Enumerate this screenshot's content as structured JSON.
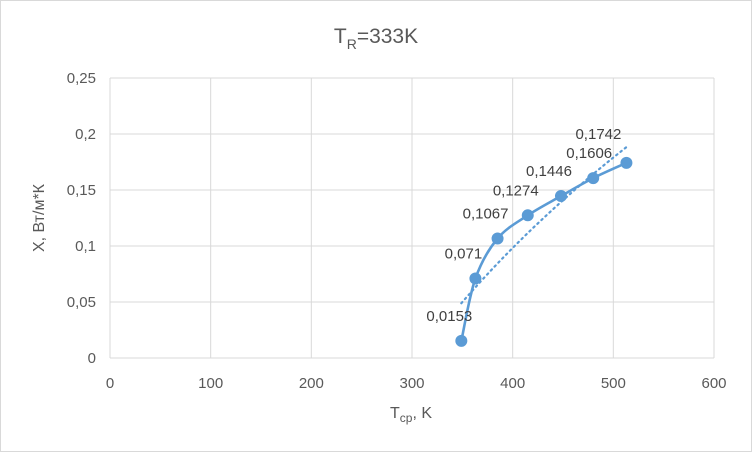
{
  "chart_data": {
    "type": "scatter",
    "title": "T",
    "title_sub": "R",
    "title_rest": "=333K",
    "xlabel": "T",
    "xlabel_sub": "ср",
    "xlabel_rest": ", K",
    "ylabel": "X, Вт/м*К",
    "xlim": [
      0,
      600
    ],
    "ylim": [
      0,
      0.25
    ],
    "x_ticks": [
      0,
      100,
      200,
      300,
      400,
      500,
      600
    ],
    "x_tick_labels": [
      "0",
      "100",
      "200",
      "300",
      "400",
      "500",
      "600"
    ],
    "y_ticks": [
      0,
      0.05,
      0.1,
      0.15,
      0.2,
      0.25
    ],
    "y_tick_labels": [
      "0",
      "0,05",
      "0,1",
      "0,15",
      "0,2",
      "0,25"
    ],
    "grid": true,
    "legend": "none",
    "series": [
      {
        "x": [
          349,
          363,
          385,
          415,
          448,
          480,
          513
        ],
        "y": [
          0.0153,
          0.071,
          0.1067,
          0.1274,
          0.1446,
          0.1606,
          0.1742
        ],
        "labels": [
          "0,0153",
          "0,071",
          "0,1067",
          "0,1274",
          "0,1446",
          "0,1606",
          "0,1742"
        ],
        "color": "#5b9bd5",
        "style": "smooth line with markers"
      }
    ],
    "trendline": {
      "type": "logarithmic",
      "style": "dotted",
      "color": "#5b9bd5",
      "x_range": [
        349,
        513
      ]
    }
  }
}
